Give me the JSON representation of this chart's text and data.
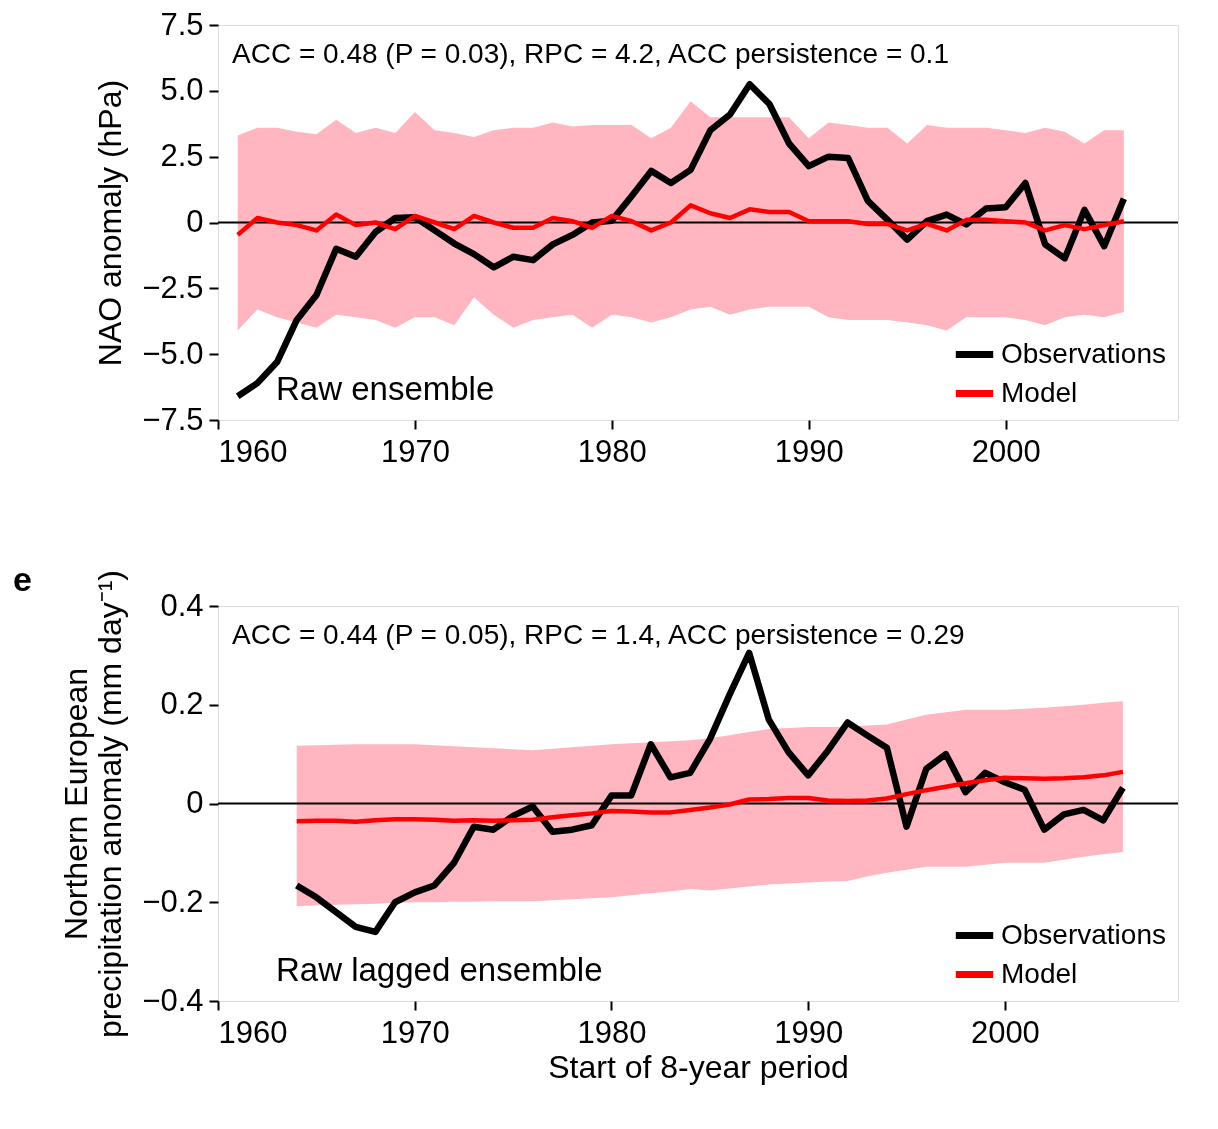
{
  "chart_data": [
    {
      "type": "line",
      "ylabel": "NAO anomaly (hPa)",
      "annotations": [
        "ACC = 0.48 (P = 0.03), RPC = 4.2, ACC persistence = 0.1",
        "Raw ensemble"
      ],
      "x": [
        1961,
        1962,
        1963,
        1964,
        1965,
        1966,
        1967,
        1968,
        1969,
        1970,
        1971,
        1972,
        1973,
        1974,
        1975,
        1976,
        1977,
        1978,
        1979,
        1980,
        1981,
        1982,
        1983,
        1984,
        1985,
        1986,
        1987,
        1988,
        1989,
        1990,
        1991,
        1992,
        1993,
        1994,
        1995,
        1996,
        1997,
        1998,
        1999,
        2000,
        2001,
        2002,
        2003,
        2004,
        2005,
        2006
      ],
      "series": [
        {
          "name": "Observations",
          "color": "#000000",
          "values": [
            -6.6,
            -6.1,
            -5.3,
            -3.7,
            -2.75,
            -1.0,
            -1.3,
            -0.36,
            0.17,
            0.2,
            -0.3,
            -0.8,
            -1.2,
            -1.7,
            -1.3,
            -1.43,
            -0.83,
            -0.47,
            0.0,
            0.07,
            1.0,
            1.96,
            1.5,
            2.0,
            3.5,
            4.1,
            5.25,
            4.5,
            3.0,
            2.14,
            2.5,
            2.45,
            0.82,
            0.1,
            -0.65,
            0.05,
            0.3,
            -0.07,
            0.53,
            0.58,
            1.5,
            -0.83,
            -1.36,
            0.48,
            -0.9,
            0.9
          ]
        },
        {
          "name": "Model",
          "color": "#ff0000",
          "values": [
            -0.47,
            0.17,
            0.0,
            -0.1,
            -0.3,
            0.3,
            -0.1,
            0.0,
            -0.25,
            0.25,
            0.0,
            -0.25,
            0.25,
            0.0,
            -0.2,
            -0.2,
            0.17,
            0.05,
            -0.2,
            0.25,
            0.05,
            -0.3,
            0.0,
            0.65,
            0.35,
            0.17,
            0.5,
            0.4,
            0.4,
            0.05,
            0.05,
            0.05,
            -0.06,
            -0.06,
            -0.3,
            -0.05,
            -0.3,
            0.1,
            0.1,
            0.05,
            0.0,
            -0.3,
            -0.1,
            -0.25,
            -0.1,
            0.05
          ],
          "lower": [
            -4.1,
            -3.3,
            -3.6,
            -3.8,
            -4.0,
            -3.5,
            -3.6,
            -3.7,
            -4.0,
            -3.6,
            -3.6,
            -3.9,
            -2.85,
            -3.5,
            -4.0,
            -3.7,
            -3.6,
            -3.5,
            -4.0,
            -3.5,
            -3.6,
            -3.8,
            -3.6,
            -3.3,
            -3.2,
            -3.5,
            -3.3,
            -3.2,
            -3.2,
            -3.2,
            -3.6,
            -3.7,
            -3.7,
            -3.7,
            -3.8,
            -3.9,
            -4.1,
            -3.6,
            -3.6,
            -3.6,
            -3.7,
            -3.9,
            -3.6,
            -3.5,
            -3.6,
            -3.4
          ],
          "upper": [
            3.3,
            3.6,
            3.6,
            3.45,
            3.35,
            3.9,
            3.4,
            3.6,
            3.4,
            4.2,
            3.5,
            3.4,
            3.25,
            3.5,
            3.6,
            3.6,
            3.8,
            3.65,
            3.7,
            3.7,
            3.7,
            3.2,
            3.6,
            4.6,
            4.0,
            4.0,
            4.0,
            4.0,
            4.0,
            3.2,
            3.8,
            3.7,
            3.6,
            3.6,
            3.0,
            3.7,
            3.6,
            3.6,
            3.6,
            3.5,
            3.4,
            3.6,
            3.45,
            3.0,
            3.5,
            3.5
          ]
        }
      ],
      "xlim": [
        1960,
        2008.75
      ],
      "xticks": [
        1960,
        1970,
        1980,
        1990,
        2000
      ],
      "ylim": [
        -7.5,
        7.5
      ],
      "yticks": [
        {
          "value": -7.5,
          "label": "−7.5"
        },
        {
          "value": -5,
          "label": "−5.0"
        },
        {
          "value": -2.5,
          "label": "−2.5"
        },
        0,
        {
          "value": 2.5,
          "label": "2.5"
        },
        {
          "value": 5,
          "label": "5.0"
        },
        {
          "value": 7.5,
          "label": "7.5"
        }
      ],
      "ref_lines": [
        {
          "axis": "y",
          "value": 0,
          "color": "#000000"
        }
      ],
      "legend": "bottom right",
      "grid": false,
      "marker": "none",
      "line_style": "solid"
    },
    {
      "type": "line",
      "title": "e",
      "ylabel": "Northern European\nprecipitation anomaly (mm day⁻¹)",
      "xlabel": "Start of 8-year period",
      "annotations": [
        "ACC = 0.44 (P = 0.05), RPC = 1.4, ACC persistence = 0.29",
        "Raw lagged ensemble"
      ],
      "x": [
        1964,
        1965,
        1966,
        1967,
        1968,
        1969,
        1970,
        1971,
        1972,
        1973,
        1974,
        1975,
        1976,
        1977,
        1978,
        1979,
        1980,
        1981,
        1982,
        1983,
        1984,
        1985,
        1986,
        1987,
        1988,
        1989,
        1990,
        1991,
        1992,
        1993,
        1994,
        1995,
        1996,
        1997,
        1998,
        1999,
        2000,
        2001,
        2002,
        2003,
        2004,
        2005,
        2006
      ],
      "series": [
        {
          "name": "Observations",
          "color": "#000000",
          "values": [
            -0.166,
            -0.19,
            -0.22,
            -0.25,
            -0.26,
            -0.2,
            -0.18,
            -0.166,
            -0.12,
            -0.047,
            -0.053,
            -0.025,
            -0.006,
            -0.057,
            -0.053,
            -0.044,
            0.016,
            0.016,
            0.12,
            0.053,
            0.062,
            0.13,
            0.22,
            0.305,
            0.17,
            0.104,
            0.057,
            0.107,
            0.164,
            0.138,
            0.113,
            -0.047,
            0.07,
            0.1,
            0.023,
            0.062,
            0.043,
            0.028,
            -0.053,
            -0.022,
            -0.013,
            -0.034,
            0.032
          ]
        },
        {
          "name": "Model",
          "color": "#ff0000",
          "values": [
            -0.036,
            -0.035,
            -0.035,
            -0.037,
            -0.034,
            -0.032,
            -0.032,
            -0.033,
            -0.035,
            -0.034,
            -0.035,
            -0.034,
            -0.033,
            -0.028,
            -0.024,
            -0.02,
            -0.015,
            -0.016,
            -0.018,
            -0.018,
            -0.013,
            -0.008,
            -0.002,
            0.008,
            0.009,
            0.011,
            0.011,
            0.006,
            0.005,
            0.006,
            0.01,
            0.019,
            0.027,
            0.034,
            0.041,
            0.047,
            0.052,
            0.051,
            0.05,
            0.051,
            0.053,
            0.057,
            0.064
          ],
          "lower": [
            -0.208,
            -0.206,
            -0.205,
            -0.204,
            -0.203,
            -0.201,
            -0.2,
            -0.2,
            -0.199,
            -0.199,
            -0.198,
            -0.198,
            -0.198,
            -0.196,
            -0.194,
            -0.192,
            -0.19,
            -0.186,
            -0.182,
            -0.178,
            -0.173,
            -0.176,
            -0.172,
            -0.168,
            -0.164,
            -0.162,
            -0.16,
            -0.158,
            -0.157,
            -0.148,
            -0.14,
            -0.134,
            -0.128,
            -0.128,
            -0.128,
            -0.124,
            -0.12,
            -0.12,
            -0.12,
            -0.114,
            -0.108,
            -0.103,
            -0.098
          ],
          "upper": [
            0.117,
            0.118,
            0.119,
            0.12,
            0.12,
            0.12,
            0.12,
            0.118,
            0.116,
            0.114,
            0.112,
            0.11,
            0.108,
            0.111,
            0.114,
            0.117,
            0.12,
            0.122,
            0.124,
            0.126,
            0.128,
            0.132,
            0.138,
            0.145,
            0.151,
            0.153,
            0.155,
            0.155,
            0.155,
            0.158,
            0.16,
            0.17,
            0.18,
            0.185,
            0.19,
            0.19,
            0.19,
            0.192,
            0.194,
            0.197,
            0.2,
            0.204,
            0.207
          ]
        }
      ],
      "xlim": [
        1960,
        2008.8
      ],
      "xticks": [
        1960,
        1970,
        1980,
        1990,
        2000
      ],
      "ylim": [
        -0.4,
        0.4
      ],
      "yticks": [
        {
          "value": -0.4,
          "label": "−0.4"
        },
        {
          "value": -0.2,
          "label": "−0.2"
        },
        0,
        0.2,
        0.4
      ],
      "ref_lines": [
        {
          "axis": "y",
          "value": 0,
          "color": "#000000"
        }
      ],
      "legend": "bottom right",
      "grid": false,
      "marker": "none",
      "line_style": "solid"
    }
  ]
}
